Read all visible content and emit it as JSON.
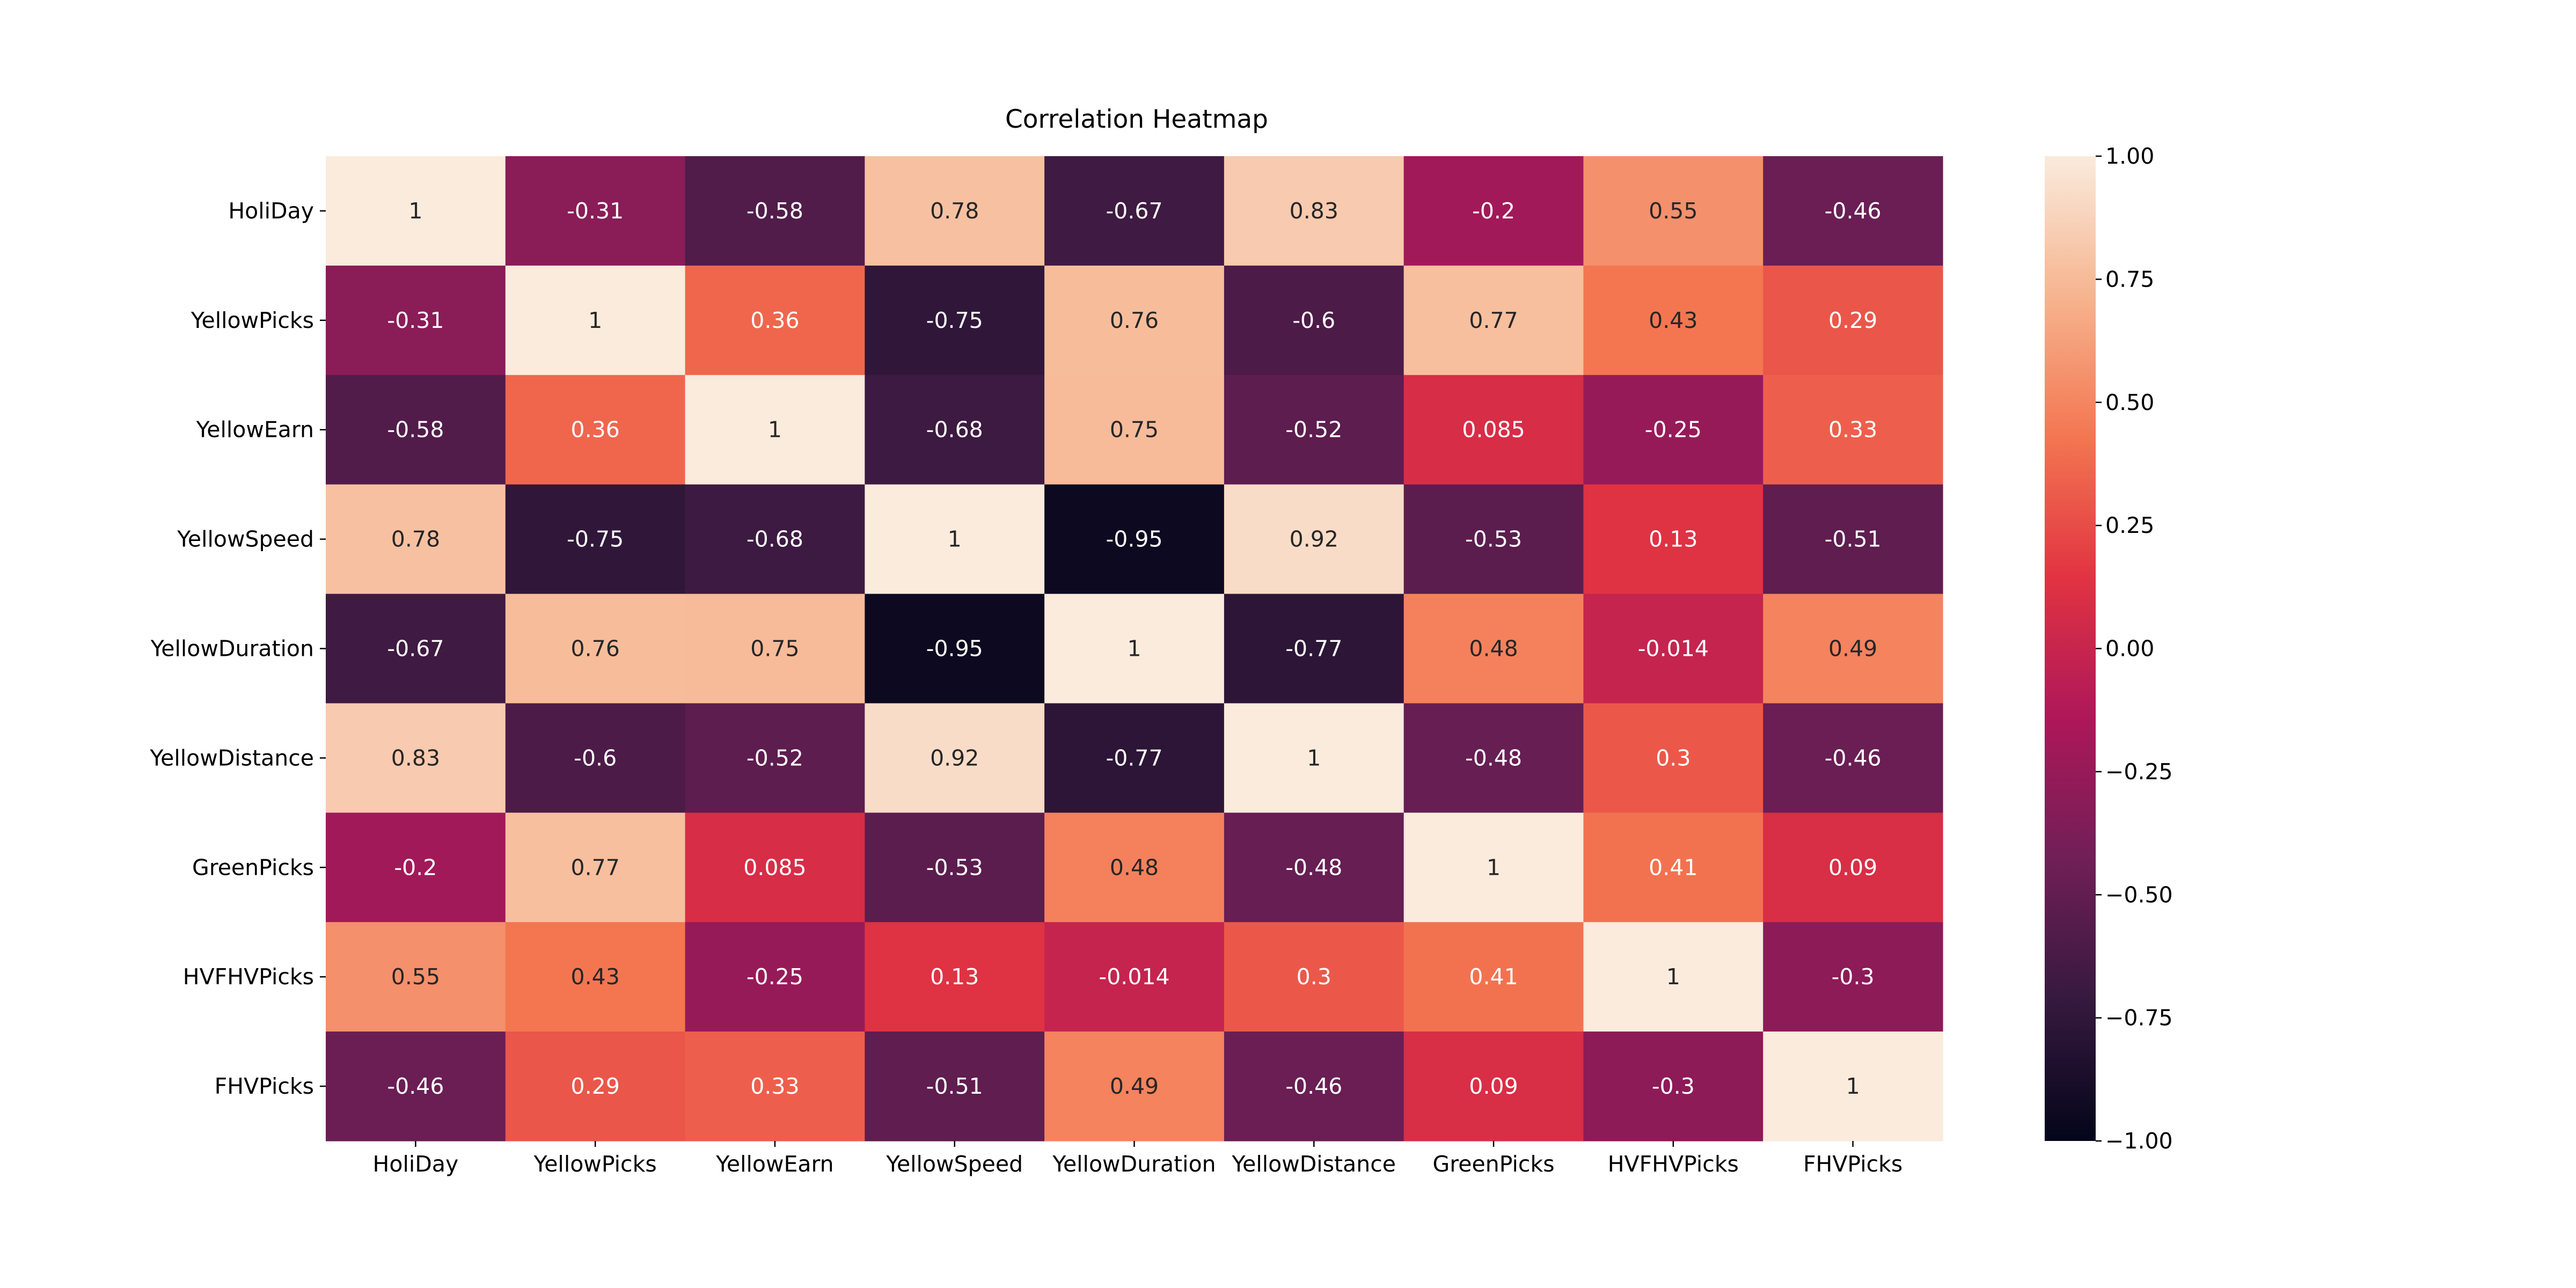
{
  "chart_data": {
    "type": "heatmap",
    "title": "Correlation Heatmap",
    "xlabel": "",
    "ylabel": "",
    "x_categories": [
      "HoliDay",
      "YellowPicks",
      "YellowEarn",
      "YellowSpeed",
      "YellowDuration",
      "YellowDistance",
      "GreenPicks",
      "HVFHVPicks",
      "FHVPicks"
    ],
    "y_categories": [
      "HoliDay",
      "YellowPicks",
      "YellowEarn",
      "YellowSpeed",
      "YellowDuration",
      "YellowDistance",
      "GreenPicks",
      "HVFHVPicks",
      "FHVPicks"
    ],
    "values": [
      [
        1,
        -0.31,
        -0.58,
        0.78,
        -0.67,
        0.83,
        -0.2,
        0.55,
        -0.46
      ],
      [
        -0.31,
        1,
        0.36,
        -0.75,
        0.76,
        -0.6,
        0.77,
        0.43,
        0.29
      ],
      [
        -0.58,
        0.36,
        1,
        -0.68,
        0.75,
        -0.52,
        0.085,
        -0.25,
        0.33
      ],
      [
        0.78,
        -0.75,
        -0.68,
        1,
        -0.95,
        0.92,
        -0.53,
        0.13,
        -0.51
      ],
      [
        -0.67,
        0.76,
        0.75,
        -0.95,
        1,
        -0.77,
        0.48,
        -0.014,
        0.49
      ],
      [
        0.83,
        -0.6,
        -0.52,
        0.92,
        -0.77,
        1,
        -0.48,
        0.3,
        -0.46
      ],
      [
        -0.2,
        0.77,
        0.085,
        -0.53,
        0.48,
        -0.48,
        1,
        0.41,
        0.09
      ],
      [
        0.55,
        0.43,
        -0.25,
        0.13,
        -0.014,
        0.3,
        0.41,
        1,
        -0.3
      ],
      [
        -0.46,
        0.29,
        0.33,
        -0.51,
        0.49,
        -0.46,
        0.09,
        -0.3,
        1
      ]
    ],
    "annotations": [
      [
        "1",
        "-0.31",
        "-0.58",
        "0.78",
        "-0.67",
        "0.83",
        "-0.2",
        "0.55",
        "-0.46"
      ],
      [
        "-0.31",
        "1",
        "0.36",
        "-0.75",
        "0.76",
        "-0.6",
        "0.77",
        "0.43",
        "0.29"
      ],
      [
        "-0.58",
        "0.36",
        "1",
        "-0.68",
        "0.75",
        "-0.52",
        "0.085",
        "-0.25",
        "0.33"
      ],
      [
        "0.78",
        "-0.75",
        "-0.68",
        "1",
        "-0.95",
        "0.92",
        "-0.53",
        "0.13",
        "-0.51"
      ],
      [
        "-0.67",
        "0.76",
        "0.75",
        "-0.95",
        "1",
        "-0.77",
        "0.48",
        "-0.014",
        "0.49"
      ],
      [
        "0.83",
        "-0.6",
        "-0.52",
        "0.92",
        "-0.77",
        "1",
        "-0.48",
        "0.3",
        "-0.46"
      ],
      [
        "-0.2",
        "0.77",
        "0.085",
        "-0.53",
        "0.48",
        "-0.48",
        "1",
        "0.41",
        "0.09"
      ],
      [
        "0.55",
        "0.43",
        "-0.25",
        "0.13",
        "-0.014",
        "0.3",
        "0.41",
        "1",
        "-0.3"
      ],
      [
        "-0.46",
        "0.29",
        "0.33",
        "-0.51",
        "0.49",
        "-0.46",
        "0.09",
        "-0.3",
        "1"
      ]
    ],
    "colorbar": {
      "range": [
        -1.0,
        1.0
      ],
      "ticks": [
        1.0,
        0.75,
        0.5,
        0.25,
        0.0,
        -0.25,
        -0.5,
        -0.75,
        -1.0
      ],
      "tick_labels": [
        "1.00",
        "0.75",
        "0.50",
        "0.25",
        "0.00",
        "−0.25",
        "−0.50",
        "−0.75",
        "−1.00"
      ]
    },
    "colormap": "rocket",
    "colormap_stops": [
      "#03051a",
      "#36193e",
      "#701f57",
      "#ae1759",
      "#e13342",
      "#f37651",
      "#f6b48f",
      "#faebdd"
    ],
    "grid": false,
    "legend": "colorbar-right"
  }
}
